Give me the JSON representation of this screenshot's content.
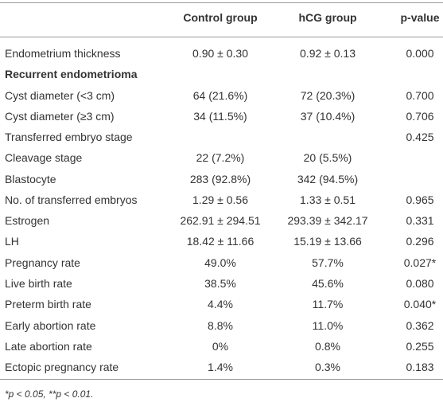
{
  "table": {
    "header": [
      "Control group",
      "hCG group",
      "p-value"
    ],
    "rows": [
      {
        "label": "Endometrium thickness",
        "control": "0.90 ± 0.30",
        "hcg": "0.92 ± 0.13",
        "p": "0.000"
      },
      {
        "label": "Recurrent endometrioma",
        "bold": true
      },
      {
        "label": "Cyst diameter (<3 cm)",
        "control": "64 (21.6%)",
        "hcg": "72 (20.3%)",
        "p": "0.700"
      },
      {
        "label": "Cyst diameter (≥3 cm)",
        "control": "34 (11.5%)",
        "hcg": "37 (10.4%)",
        "p": "0.706"
      },
      {
        "label": "Transferred embryo stage",
        "p": "0.425"
      },
      {
        "label": "Cleavage stage",
        "control": "22 (7.2%)",
        "hcg": "20 (5.5%)"
      },
      {
        "label": "Blastocyte",
        "control": "283 (92.8%)",
        "hcg": "342 (94.5%)"
      },
      {
        "label": "No. of transferred embryos",
        "control": "1.29 ± 0.56",
        "hcg": "1.33 ± 0.51",
        "p": "0.965"
      },
      {
        "label": "Estrogen",
        "control": "262.91 ± 294.51",
        "hcg": "293.39 ± 342.17",
        "p": "0.331"
      },
      {
        "label": "LH",
        "control": "18.42 ± 11.66",
        "hcg": "15.19 ± 13.66",
        "p": "0.296"
      },
      {
        "label": "Pregnancy rate",
        "control": "49.0%",
        "hcg": "57.7%",
        "p": "0.027*"
      },
      {
        "label": "Live birth rate",
        "control": "38.5%",
        "hcg": "45.6%",
        "p": "0.080"
      },
      {
        "label": "Preterm birth rate",
        "control": "4.4%",
        "hcg": "11.7%",
        "p": "0.040*"
      },
      {
        "label": "Early abortion rate",
        "control": "8.8%",
        "hcg": "11.0%",
        "p": "0.362"
      },
      {
        "label": "Late abortion rate",
        "control": "0%",
        "hcg": "0.8%",
        "p": "0.255"
      },
      {
        "label": "Ectopic pregnancy rate",
        "control": "1.4%",
        "hcg": "0.3%",
        "p": "0.183"
      }
    ],
    "footnote": "*p < 0.05, **p < 0.01."
  }
}
